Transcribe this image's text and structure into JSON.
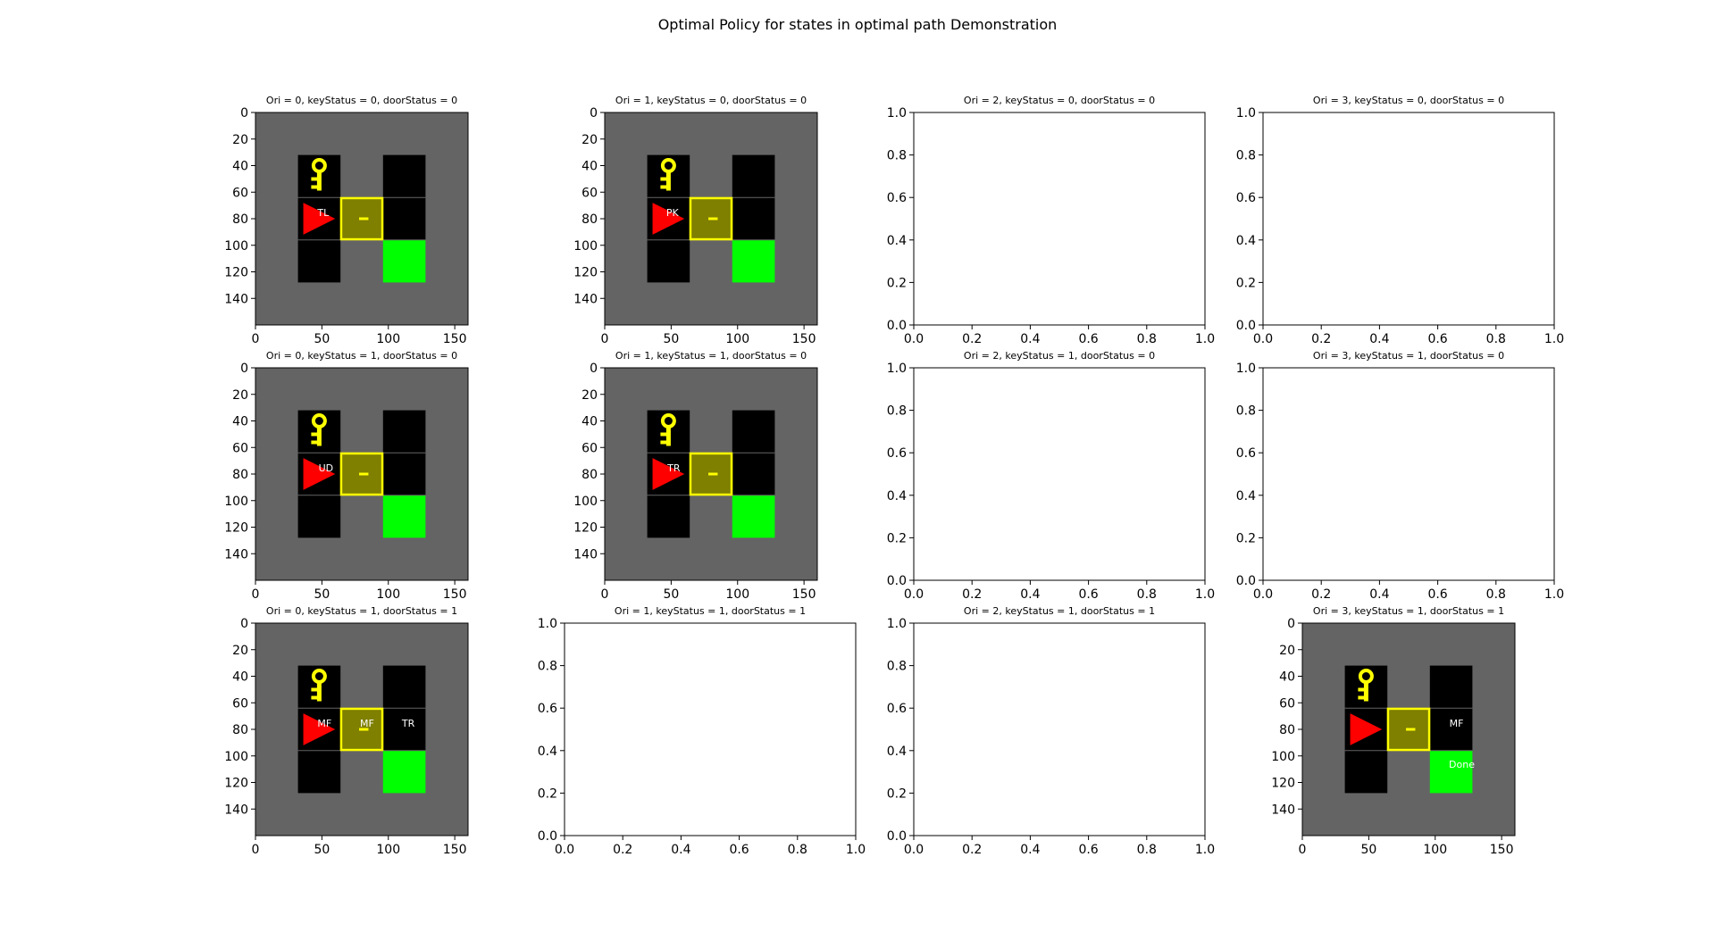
{
  "figure": {
    "title": "Optimal Policy for states in optimal path Demonstration"
  },
  "colors": {
    "background": "#646464",
    "cell": "#000000",
    "goal": "#00ff00",
    "key": "#ffff00",
    "door_fill": "#7f7f00",
    "door_border": "#ffff00",
    "agent": "#ff0000",
    "gridline": "#646464",
    "label": "#ffffff"
  },
  "chart_data": {
    "type": "grid-image-array",
    "rows": 3,
    "cols": 4,
    "image_extent": {
      "x": [
        0,
        160
      ],
      "y": [
        0,
        160
      ]
    },
    "image_xticks": [
      0,
      50,
      100,
      150
    ],
    "image_yticks": [
      0,
      20,
      40,
      60,
      80,
      100,
      120,
      140
    ],
    "empty_ticks": [
      "0.0",
      "0.2",
      "0.4",
      "0.6",
      "0.8",
      "1.0"
    ],
    "panels": [
      {
        "row": 0,
        "col": 0,
        "title": "Ori = 0, keyStatus = 0, doorStatus = 0",
        "kind": "image",
        "key": true,
        "labels": [
          {
            "text": "TL",
            "x": 51,
            "y": 76
          }
        ]
      },
      {
        "row": 0,
        "col": 1,
        "title": "Ori = 1, keyStatus = 0, doorStatus = 0",
        "kind": "image",
        "key": true,
        "labels": [
          {
            "text": "PK",
            "x": 51,
            "y": 76
          }
        ]
      },
      {
        "row": 0,
        "col": 2,
        "title": "Ori = 2, keyStatus = 0, doorStatus = 0",
        "kind": "empty"
      },
      {
        "row": 0,
        "col": 3,
        "title": "Ori = 3, keyStatus = 0, doorStatus = 0",
        "kind": "empty"
      },
      {
        "row": 1,
        "col": 0,
        "title": "Ori = 0, keyStatus = 1, doorStatus = 0",
        "kind": "image",
        "key": true,
        "labels": [
          {
            "text": "UD",
            "x": 53,
            "y": 76
          }
        ]
      },
      {
        "row": 1,
        "col": 1,
        "title": "Ori = 1, keyStatus = 1, doorStatus = 0",
        "kind": "image",
        "key": true,
        "labels": [
          {
            "text": "TR",
            "x": 52,
            "y": 76
          }
        ]
      },
      {
        "row": 1,
        "col": 2,
        "title": "Ori = 2, keyStatus = 1, doorStatus = 0",
        "kind": "empty"
      },
      {
        "row": 1,
        "col": 3,
        "title": "Ori = 3, keyStatus = 1, doorStatus = 0",
        "kind": "empty"
      },
      {
        "row": 2,
        "col": 0,
        "title": "Ori = 0, keyStatus = 1, doorStatus = 1",
        "kind": "image",
        "key": true,
        "labels": [
          {
            "text": "MF",
            "x": 52,
            "y": 76
          },
          {
            "text": "MF",
            "x": 84,
            "y": 76
          },
          {
            "text": "TR",
            "x": 115,
            "y": 76
          }
        ]
      },
      {
        "row": 2,
        "col": 1,
        "title": "Ori = 1, keyStatus = 1, doorStatus = 1",
        "kind": "empty"
      },
      {
        "row": 2,
        "col": 2,
        "title": "Ori = 2, keyStatus = 1, doorStatus = 1",
        "kind": "empty"
      },
      {
        "row": 2,
        "col": 3,
        "title": "Ori = 3, keyStatus = 1, doorStatus = 1",
        "kind": "image",
        "key": true,
        "labels": [
          {
            "text": "MF",
            "x": 116,
            "y": 76
          },
          {
            "text": "Done",
            "x": 120,
            "y": 107
          }
        ]
      }
    ]
  }
}
